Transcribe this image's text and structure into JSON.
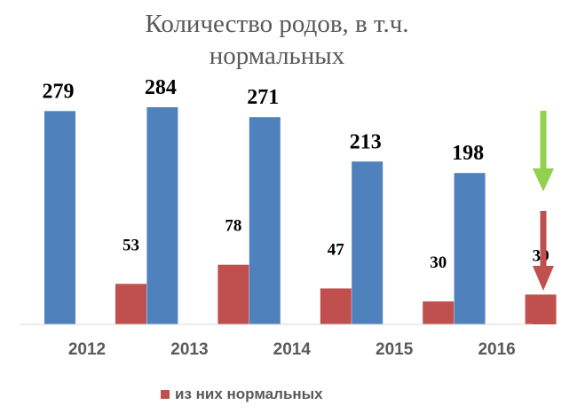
{
  "chart_data": {
    "type": "bar",
    "title_lines": [
      "Количество родов, в т.ч.",
      "нормальных"
    ],
    "categories": [
      "2012",
      "2013",
      "2014",
      "2015",
      "2016"
    ],
    "series": [
      {
        "values": [
          279,
          284,
          271,
          213,
          198
        ],
        "color": "#4f81bd"
      },
      {
        "name": "из них нормальных",
        "values": [
          53,
          78,
          47,
          30,
          39
        ],
        "color": "#c0504d"
      }
    ],
    "ylim": [
      0,
      284
    ],
    "grid": false,
    "legend": "bottom",
    "legend_visible_series": [
      1
    ],
    "indicators": [
      {
        "direction": "down",
        "color": "#92d050"
      },
      {
        "direction": "down",
        "color": "#c0504d"
      }
    ]
  }
}
